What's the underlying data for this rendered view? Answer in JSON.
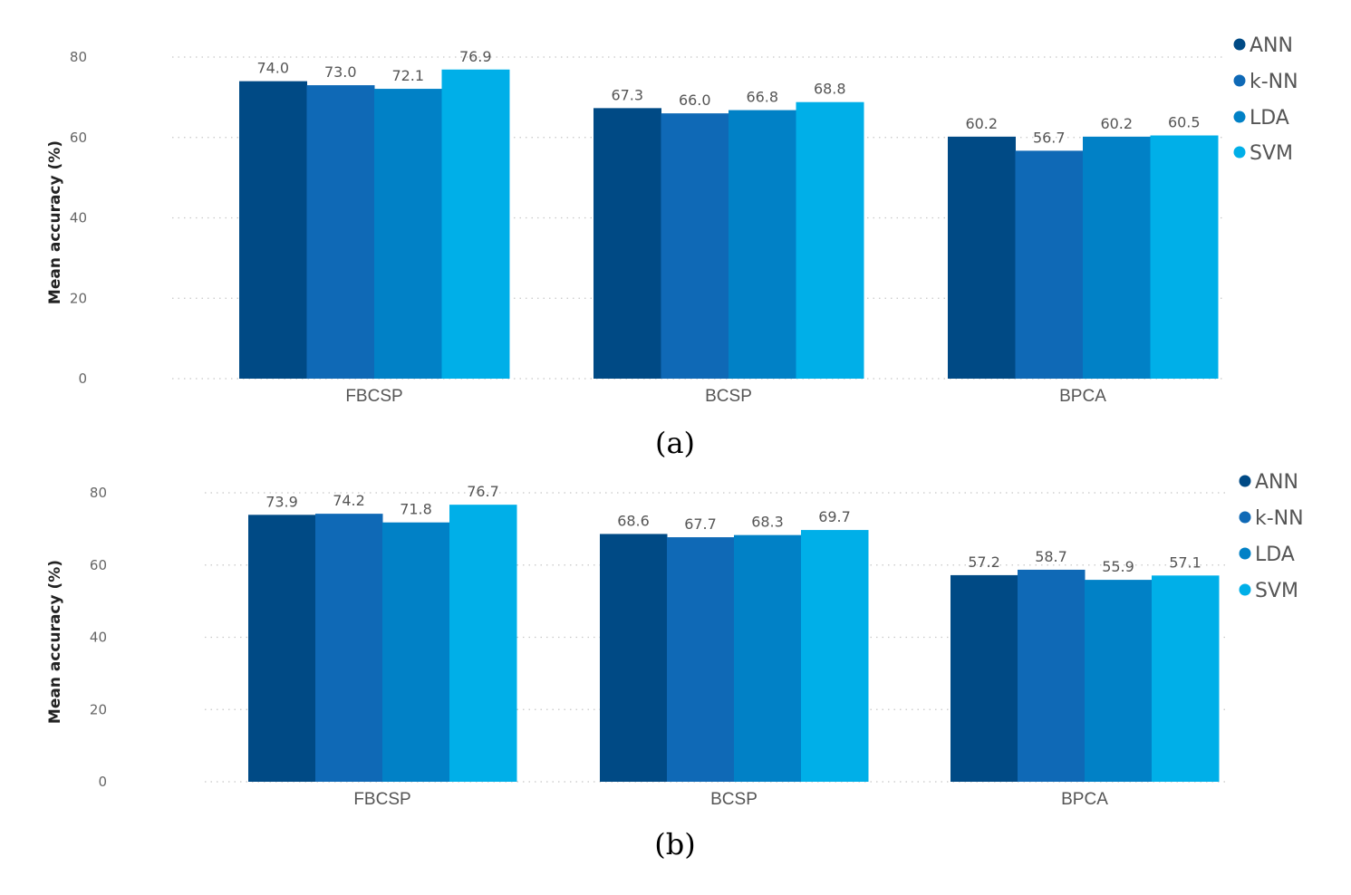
{
  "chart_data": [
    {
      "type": "bar",
      "caption": "(a)",
      "title": "",
      "xlabel": "",
      "ylabel": "Mean accuracy (%)",
      "ylim": [
        0,
        80
      ],
      "yticks": [
        "0",
        "20",
        "40",
        "60",
        "80"
      ],
      "grid": true,
      "legend_position": "top-right",
      "categories": [
        "FBCSP",
        "BCSP",
        "BPCA"
      ],
      "series": [
        {
          "name": "ANN",
          "color": "#004a85",
          "values": [
            74.0,
            67.3,
            60.2
          ],
          "labels": [
            "74.0",
            "67.3",
            "60.2"
          ]
        },
        {
          "name": "k-NN",
          "color": "#0f69b6",
          "values": [
            73.0,
            66.0,
            56.7
          ],
          "labels": [
            "73.0",
            "66.0",
            "56.7"
          ]
        },
        {
          "name": "LDA",
          "color": "#0181c6",
          "values": [
            72.1,
            66.8,
            60.2
          ],
          "labels": [
            "72.1",
            "66.8",
            "60.2"
          ]
        },
        {
          "name": "SVM",
          "color": "#00afe8",
          "values": [
            76.9,
            68.8,
            60.5
          ],
          "labels": [
            "76.9",
            "68.8",
            "60.5"
          ]
        }
      ]
    },
    {
      "type": "bar",
      "caption": "(b)",
      "title": "",
      "xlabel": "",
      "ylabel": "Mean accuracy (%)",
      "ylim": [
        0,
        80
      ],
      "yticks": [
        "0",
        "20",
        "40",
        "60",
        "80"
      ],
      "grid": true,
      "legend_position": "top-right",
      "categories": [
        "FBCSP",
        "BCSP",
        "BPCA"
      ],
      "series": [
        {
          "name": "ANN",
          "color": "#004a85",
          "values": [
            73.9,
            68.6,
            57.2
          ],
          "labels": [
            "73.9",
            "68.6",
            "57.2"
          ]
        },
        {
          "name": "k-NN",
          "color": "#0f69b6",
          "values": [
            74.2,
            67.7,
            58.7
          ],
          "labels": [
            "74.2",
            "67.7",
            "58.7"
          ]
        },
        {
          "name": "LDA",
          "color": "#0181c6",
          "values": [
            71.8,
            68.3,
            55.9
          ],
          "labels": [
            "71.8",
            "68.3",
            "55.9"
          ]
        },
        {
          "name": "SVM",
          "color": "#00afe8",
          "values": [
            76.7,
            69.7,
            57.1
          ],
          "labels": [
            "76.7",
            "69.7",
            "57.1"
          ]
        }
      ]
    }
  ]
}
